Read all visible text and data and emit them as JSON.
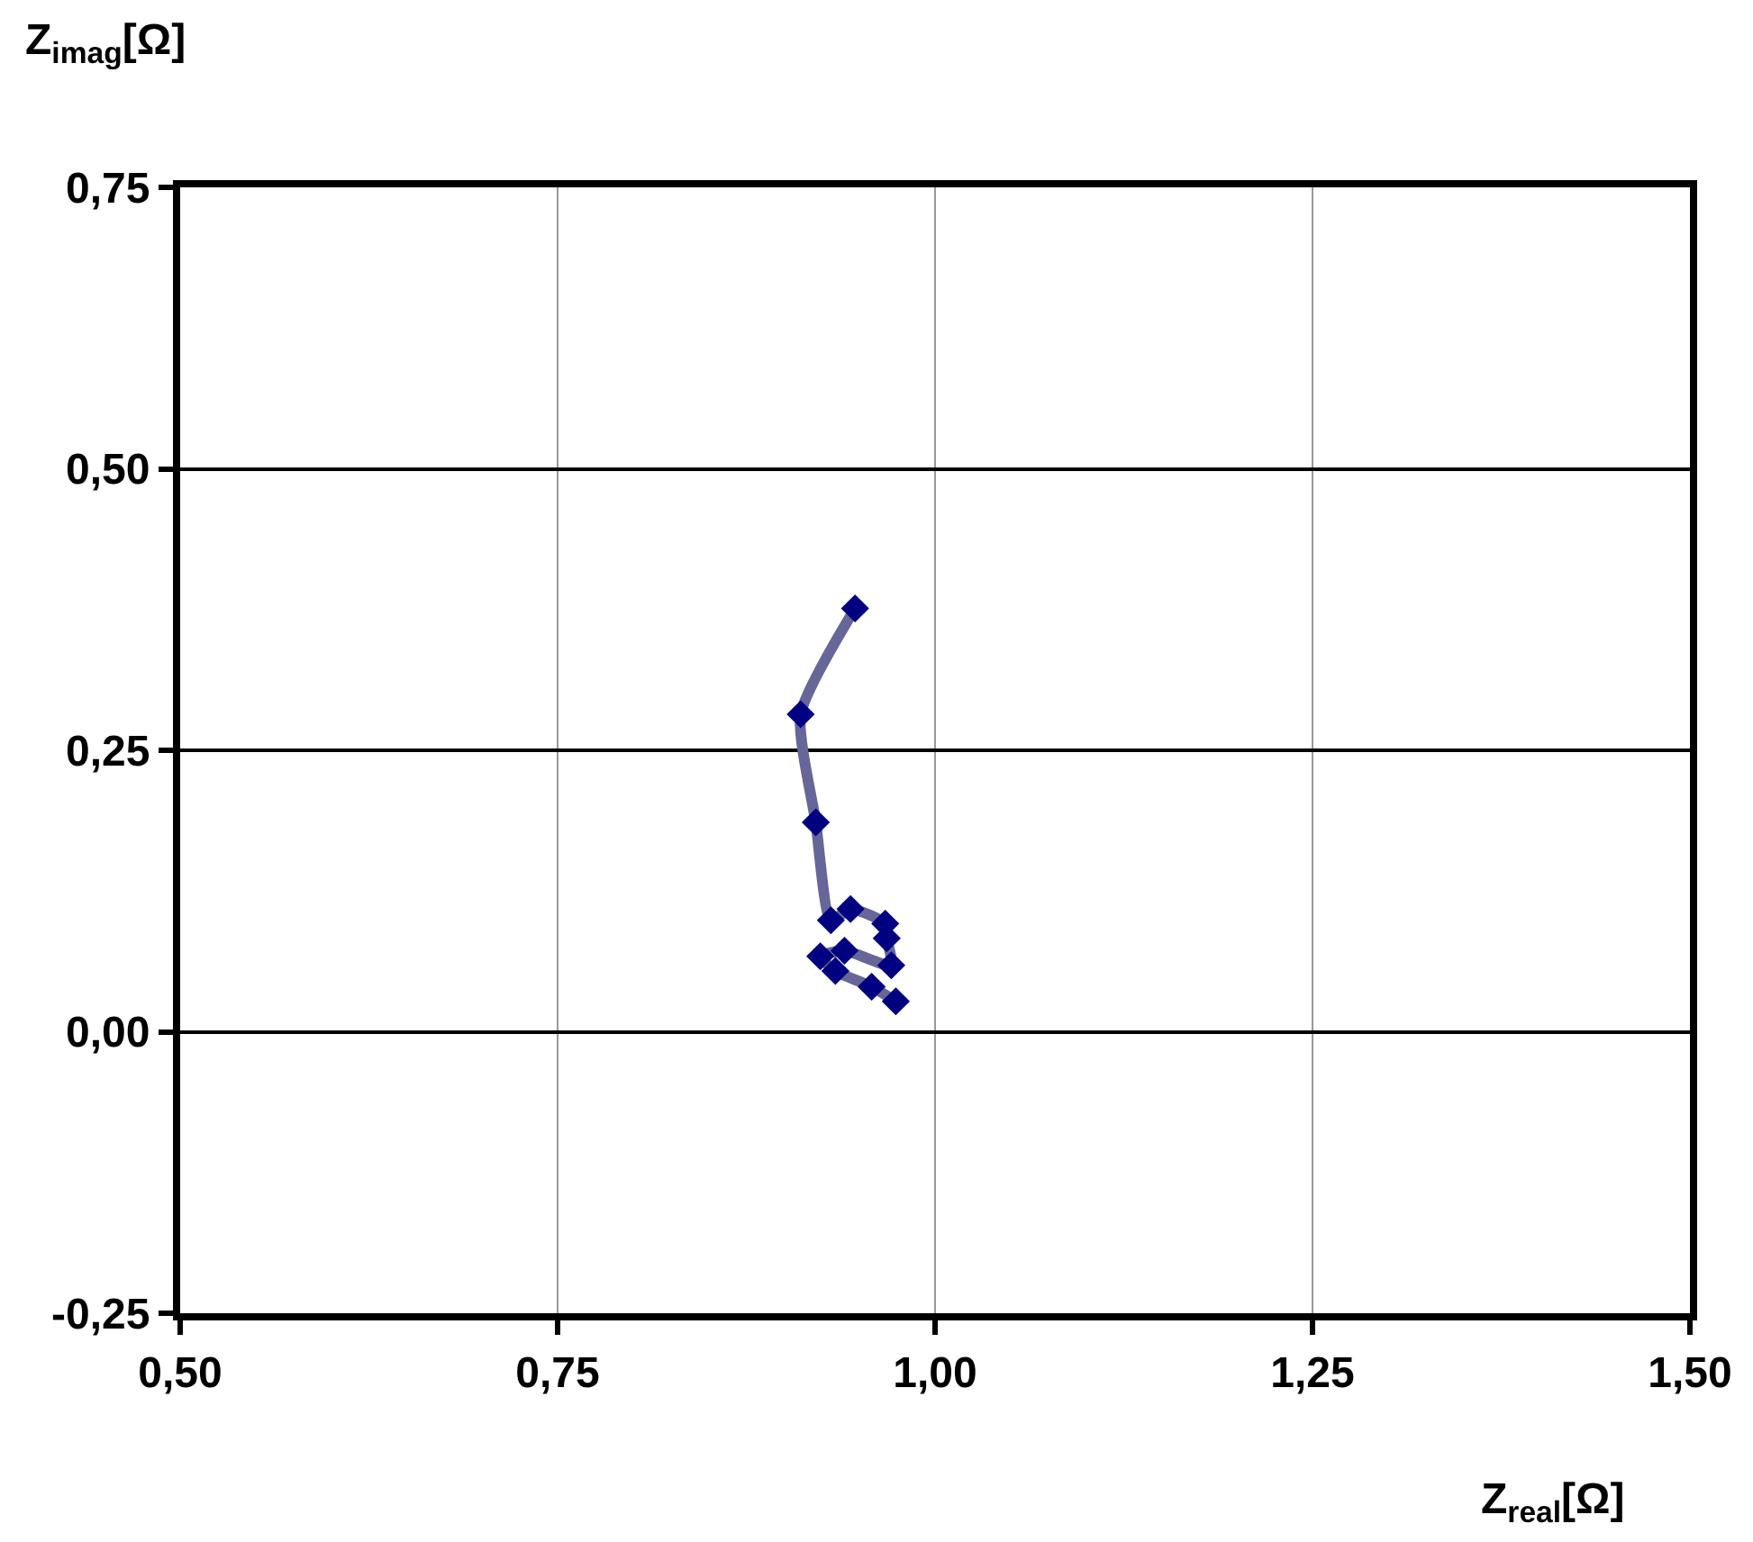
{
  "chart_data": {
    "type": "line",
    "xlabel": "Z$_{real}$[Ω]",
    "ylabel": "Z$_{imag}$[Ω]",
    "series": [
      {
        "color": "#000080",
        "x": [
          0.947,
          0.911,
          0.921,
          0.931,
          0.944,
          0.967,
          0.968,
          0.971,
          0.94,
          0.924,
          0.934,
          0.958,
          0.974
        ],
        "values": [
          0.376,
          0.282,
          0.186,
          0.099,
          0.109,
          0.096,
          0.083,
          0.059,
          0.072,
          0.067,
          0.054,
          0.04,
          0.027
        ]
      }
    ],
    "marker": "diamond",
    "grid": true,
    "xlim": [
      0.5,
      1.5
    ],
    "xticks": [
      {
        "value": 0.5,
        "label": "0,50"
      },
      {
        "value": 0.75,
        "label": "0,75"
      },
      {
        "value": 1,
        "label": "1,00"
      },
      {
        "value": 1.25,
        "label": "1,25"
      },
      {
        "value": 1.5,
        "label": "1,50"
      }
    ],
    "ylim": [
      -0.25,
      0.75
    ],
    "yticks": [
      {
        "value": -0.25,
        "label": "-0,25"
      },
      {
        "value": 0,
        "label": "0,00"
      },
      {
        "value": 0.25,
        "label": "0,25"
      },
      {
        "value": 0.5,
        "label": "0,50"
      },
      {
        "value": 0.75,
        "label": "0,75"
      }
    ]
  }
}
